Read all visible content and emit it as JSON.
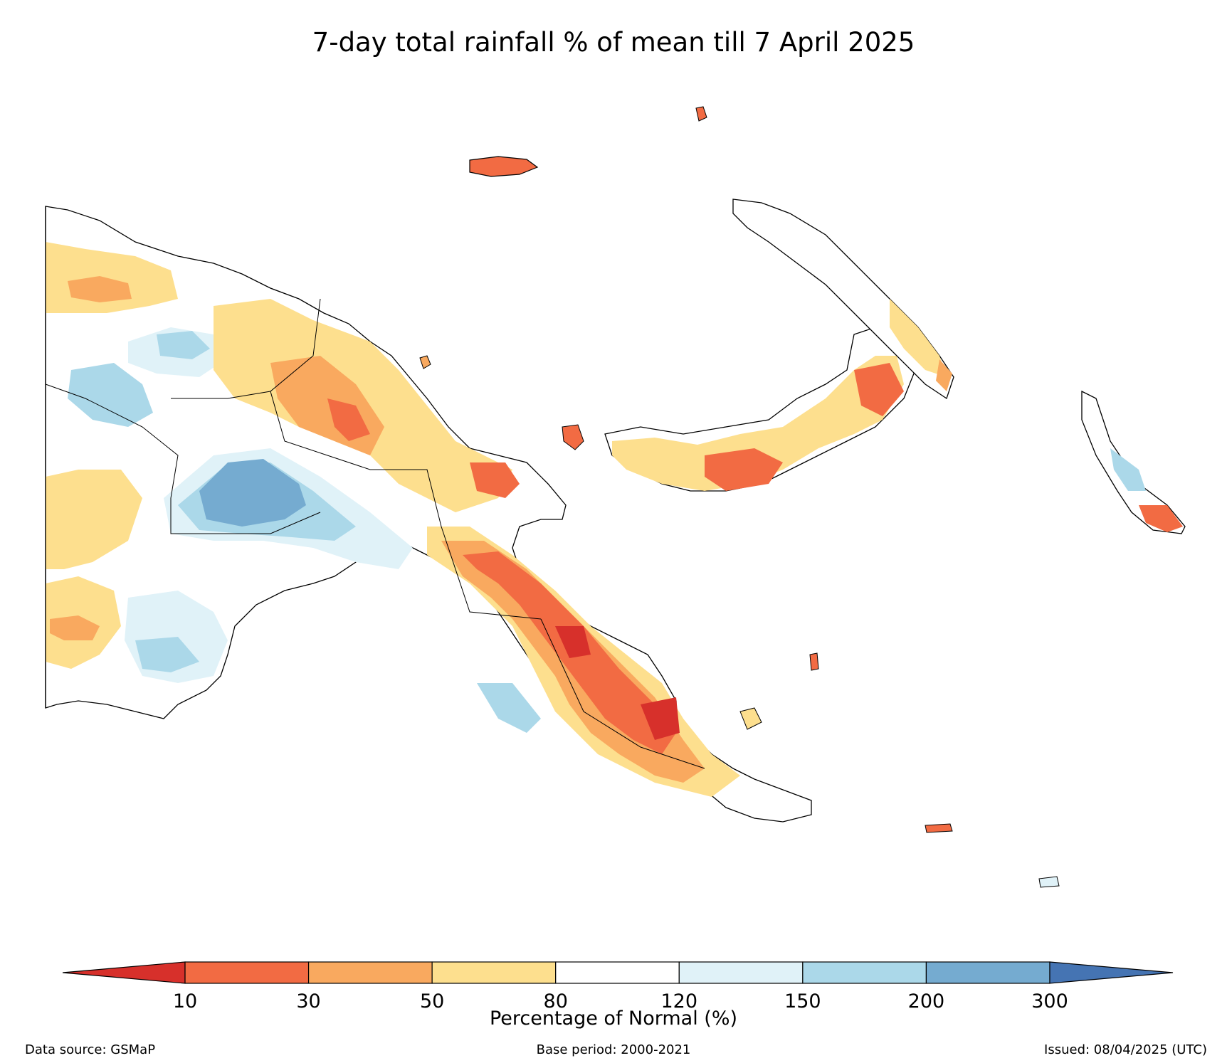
{
  "title": "7-day total rainfall % of mean till 7 April 2025",
  "colorbar": {
    "label": "Percentage of Normal (%)",
    "ticks": [
      "10",
      "30",
      "50",
      "80",
      "120",
      "150",
      "200",
      "300"
    ],
    "colors": [
      "#d7302b",
      "#f26b43",
      "#f9a95f",
      "#fddf8e",
      "#ffffff",
      "#e0f2f8",
      "#abd8e9",
      "#75abd0",
      "#4574b3"
    ]
  },
  "footer": {
    "source": "Data source: GSMaP",
    "base_period": "Base period: 2000-2021",
    "issued": "Issued: 08/04/2025 (UTC)"
  },
  "legend_colors": {
    "below_10": "#d7302b",
    "c10_30": "#f26b43",
    "c30_50": "#f9a95f",
    "c50_80": "#fddf8e",
    "c80_120": "#ffffff",
    "c120_150": "#e0f2f8",
    "c150_200": "#abd8e9",
    "c200_300": "#75abd0",
    "above_300": "#4574b3"
  }
}
